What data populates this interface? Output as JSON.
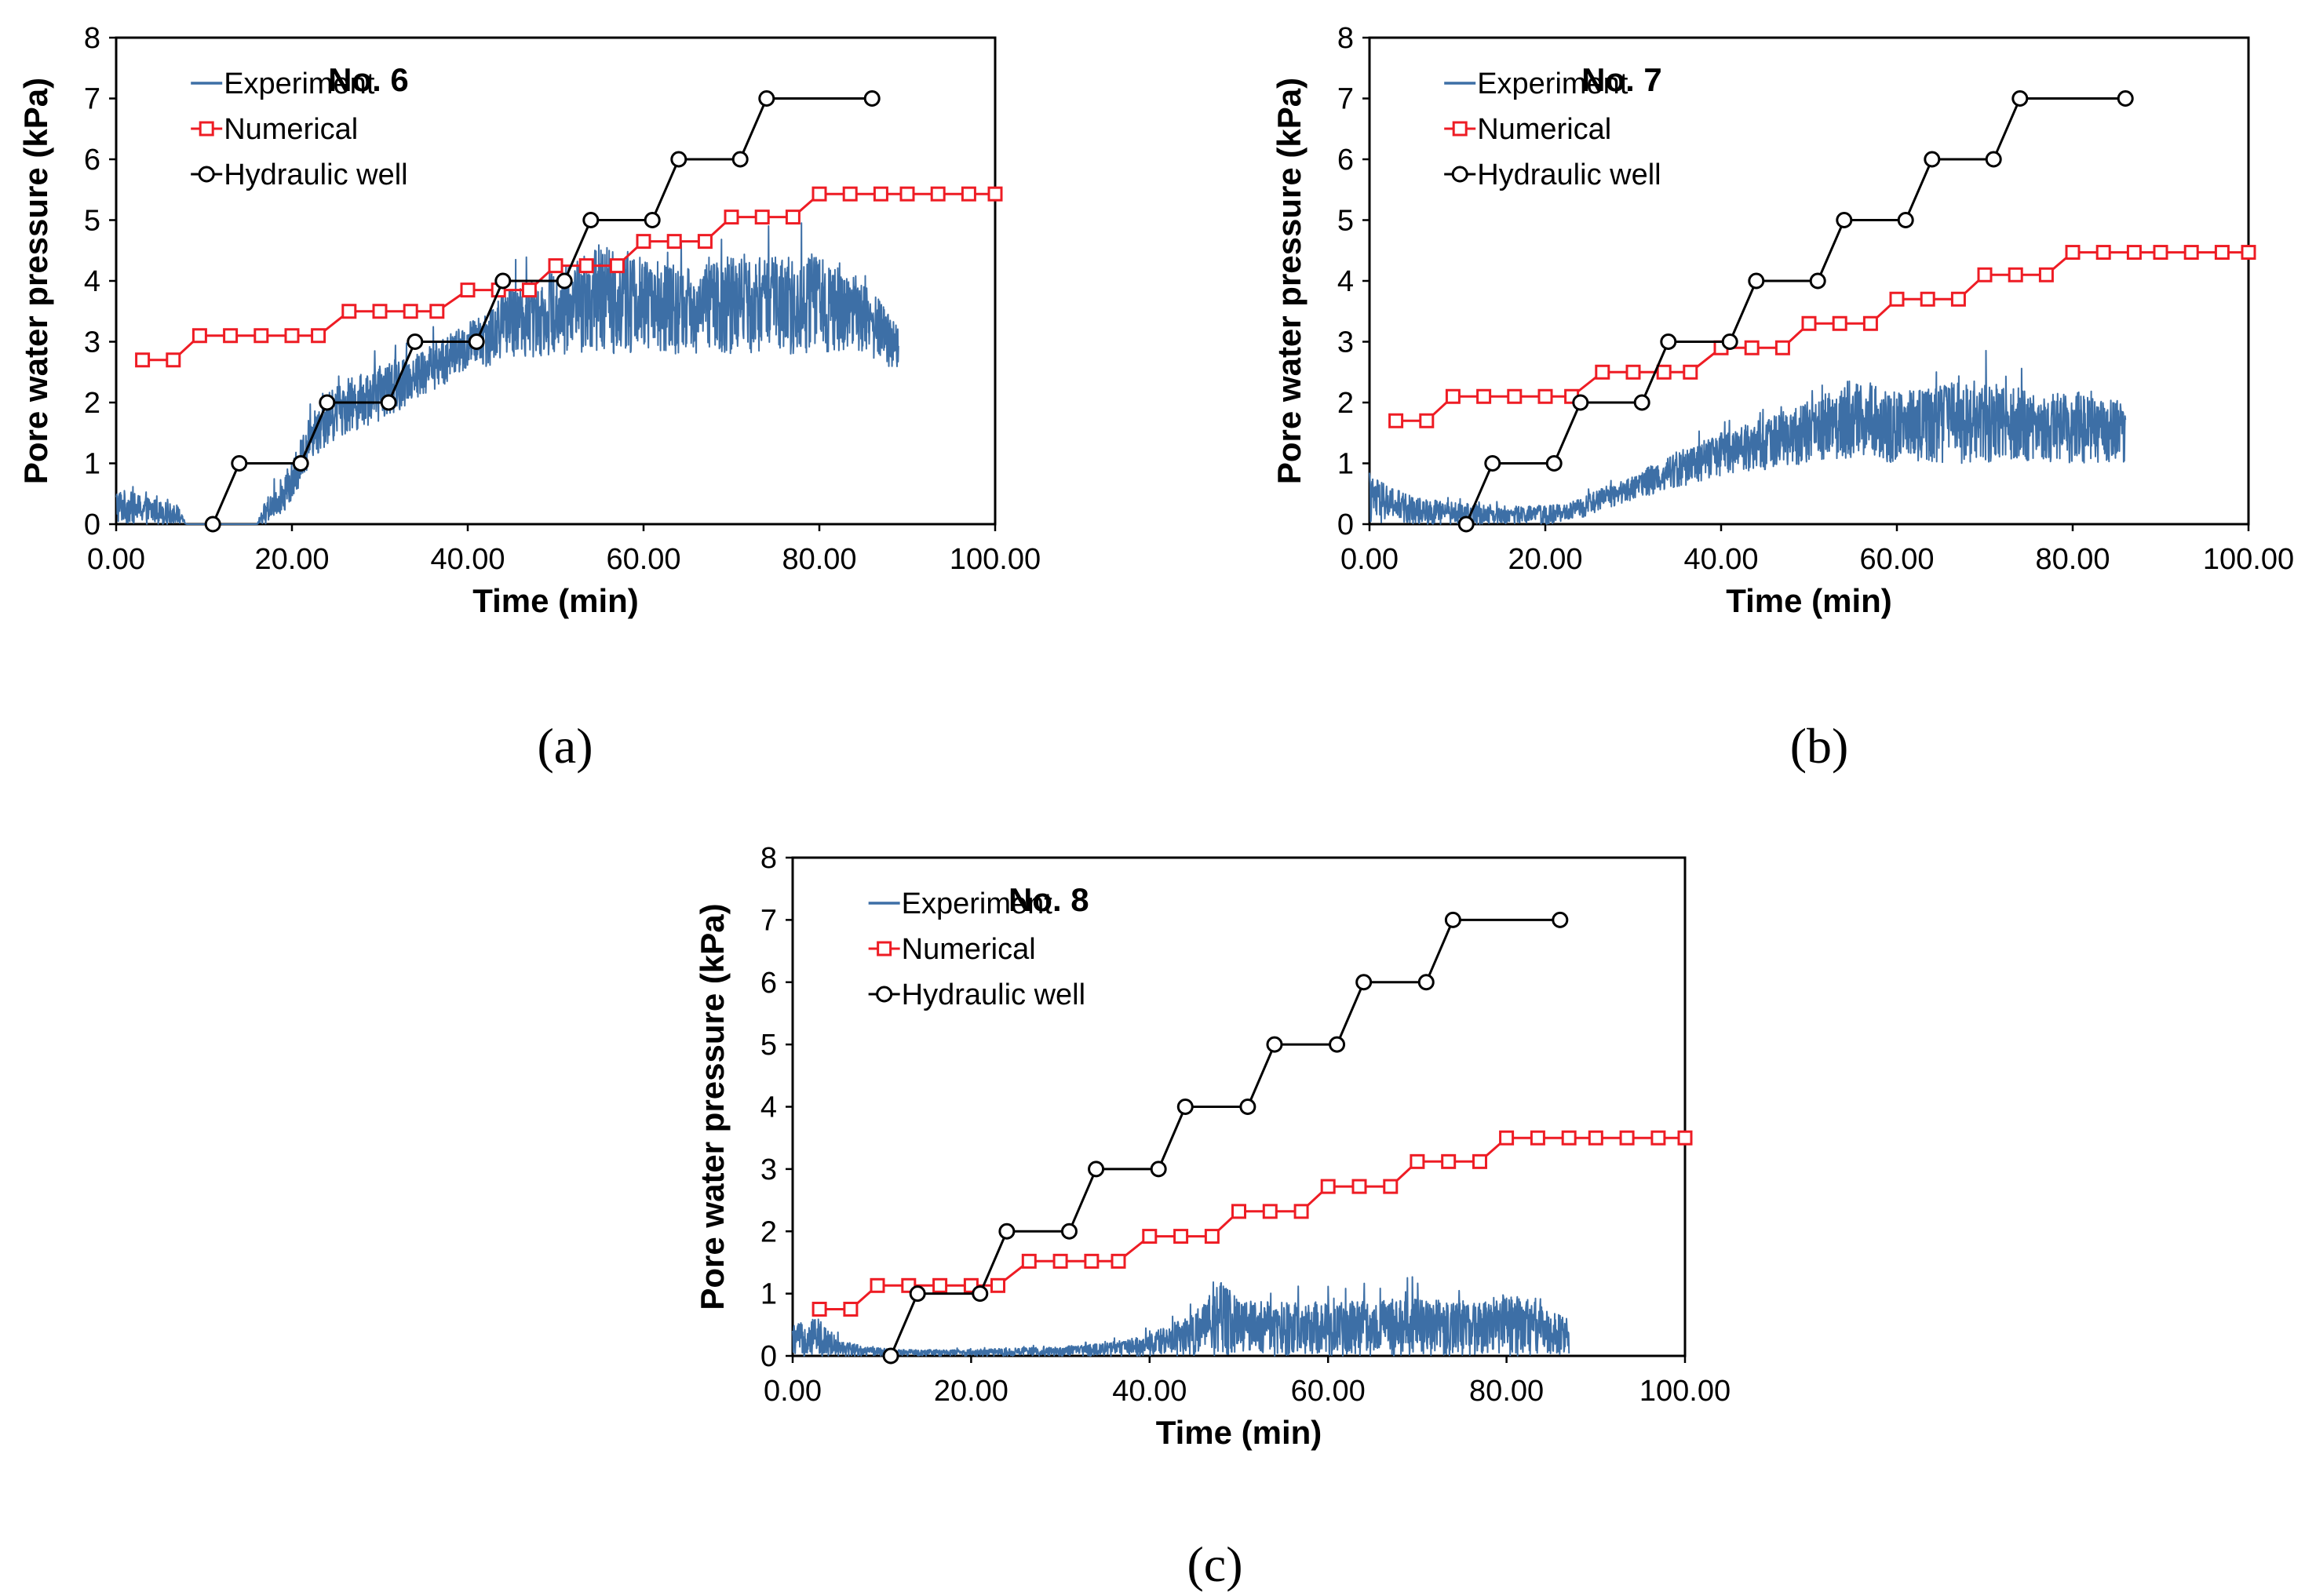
{
  "figure": {
    "captions": [
      "(a)",
      "(b)",
      "(c)"
    ]
  },
  "chart_data": [
    {
      "type": "line",
      "title": "No. 6",
      "xlabel": "Time (min)",
      "ylabel": "Pore water pressure (kPa)",
      "xlim": [
        0,
        100
      ],
      "ylim": [
        0,
        8
      ],
      "xticks": [
        "0.00",
        "20.00",
        "40.00",
        "60.00",
        "80.00",
        "100.00"
      ],
      "yticks": [
        "0",
        "1",
        "2",
        "3",
        "4",
        "5",
        "6",
        "7",
        "8"
      ],
      "legend_position": "top-left",
      "grid": false,
      "series": [
        {
          "name": "Experiment",
          "style": "noisy-line",
          "color": "#3d6fa6",
          "envelope": {
            "t": [
              0,
              7,
              8,
              16,
              17,
              20,
              22,
              25,
              30,
              35,
              40,
              45,
              50,
              55,
              60,
              65,
              70,
              75,
              80,
              85,
              89
            ],
            "low": [
              0,
              0,
              0,
              0,
              0,
              0.3,
              1.0,
              1.4,
              1.7,
              2.1,
              2.5,
              2.7,
              2.8,
              2.8,
              2.8,
              2.8,
              2.8,
              2.8,
              2.8,
              2.8,
              2.5
            ],
            "high": [
              0.6,
              0.3,
              0,
              0,
              0.4,
              1.0,
              1.8,
              2.3,
              2.6,
              2.9,
              3.3,
              3.9,
              4.2,
              4.6,
              4.4,
              4.2,
              4.4,
              4.4,
              4.4,
              4.0,
              3.3
            ]
          }
        },
        {
          "name": "Numerical",
          "marker": "square",
          "color": "#ee1c24",
          "x": [
            3,
            6.5,
            9.5,
            13,
            16.5,
            20,
            23,
            26.5,
            30,
            33.5,
            36.5,
            40,
            43.5,
            47,
            50,
            53.5,
            57,
            60,
            63.5,
            67,
            70,
            73.5,
            77,
            80,
            83.5,
            87,
            90,
            93.5,
            97,
            100
          ],
          "y": [
            2.7,
            2.7,
            3.1,
            3.1,
            3.1,
            3.1,
            3.1,
            3.5,
            3.5,
            3.5,
            3.5,
            3.85,
            3.85,
            3.85,
            4.25,
            4.25,
            4.25,
            4.65,
            4.65,
            4.65,
            5.05,
            5.05,
            5.05,
            5.43,
            5.43,
            5.43,
            5.43,
            5.43,
            5.43,
            5.43
          ]
        },
        {
          "name": "Hydraulic well",
          "marker": "circle",
          "color": "#000000",
          "x": [
            11,
            14,
            21,
            24,
            31,
            34,
            41,
            44,
            51,
            54,
            61,
            64,
            71,
            74,
            86
          ],
          "y": [
            0,
            1,
            1,
            2,
            2,
            3,
            3,
            4,
            4,
            5,
            5,
            6,
            6,
            7,
            7
          ]
        }
      ]
    },
    {
      "type": "line",
      "title": "No. 7",
      "xlabel": "Time (min)",
      "ylabel": "Pore water pressure (kPa)",
      "xlim": [
        0,
        100
      ],
      "ylim": [
        0,
        8
      ],
      "xticks": [
        "0.00",
        "20.00",
        "40.00",
        "60.00",
        "80.00",
        "100.00"
      ],
      "yticks": [
        "0",
        "1",
        "2",
        "3",
        "4",
        "5",
        "6",
        "7",
        "8"
      ],
      "legend_position": "top-left",
      "grid": false,
      "series": [
        {
          "name": "Experiment",
          "style": "noisy-line",
          "color": "#3d6fa6",
          "envelope": {
            "t": [
              0,
              5,
              10,
              15,
              20,
              23,
              25,
              30,
              35,
              40,
              45,
              50,
              55,
              60,
              65,
              70,
              75,
              80,
              86
            ],
            "low": [
              0,
              0,
              0,
              0,
              0,
              0.05,
              0.15,
              0.4,
              0.6,
              0.8,
              0.9,
              1.0,
              1.1,
              1.0,
              1.0,
              1.0,
              1.0,
              1.0,
              1.0
            ],
            "high": [
              0.8,
              0.45,
              0.35,
              0.3,
              0.3,
              0.35,
              0.5,
              0.8,
              1.2,
              1.5,
              1.7,
              2.0,
              2.4,
              2.2,
              2.3,
              2.4,
              2.2,
              2.2,
              2.0
            ]
          }
        },
        {
          "name": "Numerical",
          "marker": "square",
          "color": "#ee1c24",
          "x": [
            3,
            6.5,
            9.5,
            13,
            16.5,
            20,
            23,
            26.5,
            30,
            33.5,
            36.5,
            40,
            43.5,
            47,
            50,
            53.5,
            57,
            60,
            63.5,
            67,
            70,
            73.5,
            77,
            80,
            83.5,
            87,
            90,
            93.5,
            97,
            100
          ],
          "y": [
            1.7,
            1.7,
            2.1,
            2.1,
            2.1,
            2.1,
            2.1,
            2.5,
            2.5,
            2.5,
            2.5,
            2.9,
            2.9,
            2.9,
            3.3,
            3.3,
            3.3,
            3.7,
            3.7,
            3.7,
            4.1,
            4.1,
            4.1,
            4.47,
            4.47,
            4.47,
            4.47,
            4.47,
            4.47,
            4.47
          ]
        },
        {
          "name": "Hydraulic well",
          "marker": "circle",
          "color": "#000000",
          "x": [
            11,
            14,
            21,
            24,
            31,
            34,
            41,
            44,
            51,
            54,
            61,
            64,
            71,
            74,
            86
          ],
          "y": [
            0,
            1,
            1,
            2,
            2,
            3,
            3,
            4,
            4,
            5,
            5,
            6,
            6,
            7,
            7
          ]
        }
      ]
    },
    {
      "type": "line",
      "title": "No. 8",
      "xlabel": "Time (min)",
      "ylabel": "Pore water pressure (kPa)",
      "xlim": [
        0,
        100
      ],
      "ylim": [
        0,
        8
      ],
      "xticks": [
        "0.00",
        "20.00",
        "40.00",
        "60.00",
        "80.00",
        "100.00"
      ],
      "yticks": [
        "0",
        "1",
        "2",
        "3",
        "4",
        "5",
        "6",
        "7",
        "8"
      ],
      "legend_position": "top-left",
      "grid": false,
      "series": [
        {
          "name": "Experiment",
          "style": "noisy-line",
          "color": "#3d6fa6",
          "envelope": {
            "t": [
              0,
              3,
              5,
              8,
              12,
              20,
              30,
              35,
              40,
              45,
              48,
              50,
              55,
              60,
              65,
              70,
              75,
              80,
              84,
              87
            ],
            "low": [
              0,
              0,
              0,
              0,
              0,
              0,
              0,
              0,
              0,
              0,
              0,
              0,
              0,
              0,
              0,
              0,
              0,
              0,
              0,
              0
            ],
            "high": [
              0.5,
              0.6,
              0.3,
              0.15,
              0.1,
              0.1,
              0.15,
              0.2,
              0.35,
              0.7,
              1.2,
              0.9,
              0.85,
              0.85,
              0.9,
              0.95,
              0.85,
              1.0,
              0.85,
              0.6
            ]
          }
        },
        {
          "name": "Numerical",
          "marker": "square",
          "color": "#ee1c24",
          "x": [
            3,
            6.5,
            9.5,
            13,
            16.5,
            20,
            23,
            26.5,
            30,
            33.5,
            36.5,
            40,
            43.5,
            47,
            50,
            53.5,
            57,
            60,
            63.5,
            67,
            70,
            73.5,
            77,
            80,
            83.5,
            87,
            90,
            93.5,
            97,
            100
          ],
          "y": [
            0.75,
            0.75,
            1.13,
            1.13,
            1.13,
            1.13,
            1.13,
            1.52,
            1.52,
            1.52,
            1.52,
            1.92,
            1.92,
            1.92,
            2.32,
            2.32,
            2.32,
            2.72,
            2.72,
            2.72,
            3.12,
            3.12,
            3.12,
            3.5,
            3.5,
            3.5,
            3.5,
            3.5,
            3.5,
            3.5
          ]
        },
        {
          "name": "Hydraulic well",
          "marker": "circle",
          "color": "#000000",
          "x": [
            11,
            14,
            21,
            24,
            31,
            34,
            41,
            44,
            51,
            54,
            61,
            64,
            71,
            74,
            86
          ],
          "y": [
            0,
            1,
            1,
            2,
            2,
            3,
            3,
            4,
            4,
            5,
            5,
            6,
            6,
            7,
            7
          ]
        }
      ]
    }
  ]
}
